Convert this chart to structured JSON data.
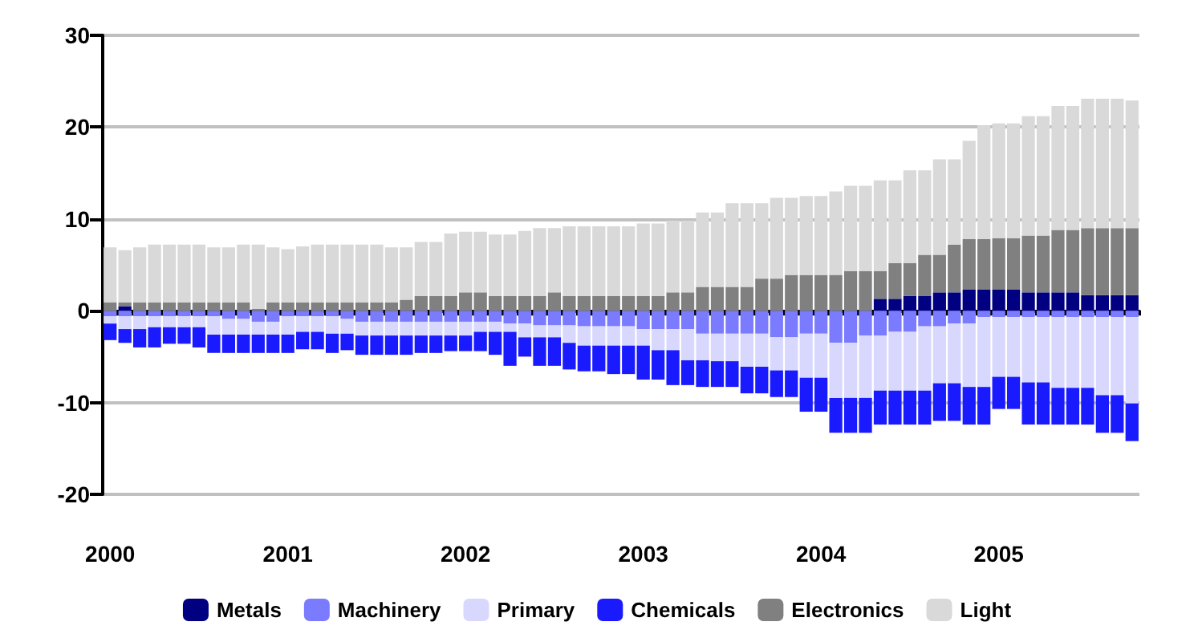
{
  "chart_data": {
    "type": "bar",
    "stacked": true,
    "legend": "bottom",
    "grid": "y",
    "ylim": [
      -20,
      30
    ],
    "yticks": [
      -20,
      -10,
      0,
      10,
      20,
      30
    ],
    "categories": [
      "2000",
      null,
      null,
      null,
      null,
      null,
      null,
      null,
      null,
      null,
      null,
      null,
      "2001",
      null,
      null,
      null,
      null,
      null,
      null,
      null,
      null,
      null,
      null,
      null,
      "2002",
      null,
      null,
      null,
      null,
      null,
      null,
      null,
      null,
      null,
      null,
      null,
      "2003",
      null,
      null,
      null,
      null,
      null,
      null,
      null,
      null,
      null,
      null,
      null,
      "2004",
      null,
      null,
      null,
      null,
      null,
      null,
      null,
      null,
      null,
      null,
      null,
      "2005",
      null,
      null,
      null,
      null,
      null,
      null,
      null,
      null,
      null
    ],
    "series": [
      {
        "name": "Metals",
        "color": "#000080",
        "values": [
          0,
          0.5,
          0,
          0,
          0,
          0,
          0,
          0,
          0,
          0,
          0,
          0,
          0,
          0,
          0,
          0,
          0,
          0,
          0,
          0,
          0,
          0,
          0,
          0,
          0,
          0,
          0,
          0,
          0,
          0,
          0,
          0,
          0,
          0,
          0,
          0,
          0,
          0,
          0,
          0,
          0,
          0,
          0,
          0,
          0,
          0,
          0,
          0,
          0,
          0,
          0,
          0,
          1.3,
          1.3,
          1.6,
          1.6,
          2.0,
          2.0,
          2.3,
          2.3,
          2.3,
          2.3,
          2.0,
          2.0,
          2.0,
          2.0,
          1.7,
          1.7,
          1.7,
          1.7
        ]
      },
      {
        "name": "Machinery",
        "color": "#7b7bff",
        "values": [
          -0.6,
          -0.6,
          -0.6,
          -0.6,
          -0.6,
          -0.6,
          -0.6,
          -0.6,
          -0.9,
          -0.9,
          -1.2,
          -1.2,
          -0.6,
          -0.6,
          -0.6,
          -0.6,
          -0.9,
          -1.2,
          -1.2,
          -1.2,
          -1.2,
          -1.2,
          -1.2,
          -1.2,
          -1.2,
          -1.2,
          -1.2,
          -1.4,
          -1.4,
          -1.6,
          -1.6,
          -1.6,
          -1.7,
          -1.7,
          -1.7,
          -1.7,
          -2.0,
          -2.0,
          -2.0,
          -2.0,
          -2.5,
          -2.5,
          -2.5,
          -2.5,
          -2.5,
          -2.9,
          -2.9,
          -2.5,
          -2.5,
          -3.5,
          -3.5,
          -2.7,
          -2.7,
          -2.3,
          -2.3,
          -1.7,
          -1.7,
          -1.4,
          -1.4,
          -0.7,
          -0.7,
          -0.7,
          -0.7,
          -0.7,
          -0.7,
          -0.7,
          -0.7,
          -0.7,
          -0.7,
          -0.7
        ]
      },
      {
        "name": "Primary",
        "color": "#d8d8ff",
        "values": [
          -0.8,
          -1.4,
          -1.4,
          -1.2,
          -1.2,
          -1.2,
          -1.2,
          -2.0,
          -1.7,
          -1.7,
          -1.4,
          -1.4,
          -2.0,
          -1.7,
          -1.7,
          -1.9,
          -1.6,
          -1.5,
          -1.5,
          -1.5,
          -1.5,
          -1.5,
          -1.5,
          -1.5,
          -1.5,
          -1.1,
          -1.1,
          -0.9,
          -1.5,
          -1.3,
          -1.3,
          -1.9,
          -2.1,
          -2.1,
          -2.1,
          -2.1,
          -1.8,
          -2.3,
          -2.3,
          -3.4,
          -2.9,
          -3.0,
          -3.0,
          -3.6,
          -3.6,
          -3.6,
          -3.6,
          -4.8,
          -4.8,
          -6.0,
          -6.0,
          -6.8,
          -6.0,
          -6.4,
          -6.4,
          -7.0,
          -6.2,
          -6.5,
          -6.9,
          -7.6,
          -6.5,
          -6.5,
          -7.1,
          -7.1,
          -7.7,
          -7.7,
          -7.7,
          -8.5,
          -8.5,
          -9.4
        ]
      },
      {
        "name": "Chemicals",
        "color": "#1a1aff",
        "values": [
          -1.8,
          -1.5,
          -2.0,
          -2.2,
          -1.8,
          -1.8,
          -2.2,
          -2.0,
          -2.0,
          -2.0,
          -2.0,
          -2.0,
          -2.0,
          -1.9,
          -1.9,
          -2.1,
          -1.8,
          -2.1,
          -2.1,
          -2.1,
          -2.1,
          -1.9,
          -1.9,
          -1.7,
          -1.7,
          -2.1,
          -2.5,
          -3.7,
          -2.1,
          -3.1,
          -3.1,
          -2.9,
          -2.8,
          -2.8,
          -3.1,
          -3.1,
          -3.7,
          -3.2,
          -3.8,
          -2.7,
          -2.9,
          -2.8,
          -2.8,
          -2.9,
          -2.9,
          -2.9,
          -2.9,
          -3.7,
          -3.7,
          -3.8,
          -3.8,
          -3.8,
          -3.7,
          -3.7,
          -3.7,
          -3.7,
          -4.1,
          -4.1,
          -4.1,
          -4.1,
          -3.5,
          -3.5,
          -4.6,
          -4.6,
          -4.0,
          -4.0,
          -4.0,
          -4.1,
          -4.1,
          -4.1
        ]
      },
      {
        "name": "Electronics",
        "color": "#808080",
        "values": [
          0.9,
          0.4,
          0.9,
          0.9,
          0.9,
          0.9,
          0.9,
          0.9,
          0.9,
          0.9,
          0.2,
          0.9,
          0.9,
          0.9,
          0.9,
          0.9,
          0.9,
          0.9,
          0.9,
          0.9,
          1.2,
          1.6,
          1.6,
          1.6,
          2.0,
          2.0,
          1.6,
          1.6,
          1.6,
          1.6,
          2.0,
          1.6,
          1.6,
          1.6,
          1.6,
          1.6,
          1.6,
          1.6,
          2.0,
          2.0,
          2.6,
          2.6,
          2.6,
          2.6,
          3.5,
          3.5,
          3.9,
          3.9,
          3.9,
          3.9,
          4.3,
          4.3,
          3.0,
          3.9,
          3.6,
          4.5,
          4.1,
          5.2,
          5.5,
          5.5,
          5.6,
          5.6,
          6.2,
          6.2,
          6.8,
          6.8,
          7.3,
          7.3,
          7.3,
          7.3
        ]
      },
      {
        "name": "Light",
        "color": "#d9d9d9",
        "values": [
          6.0,
          5.7,
          6.0,
          6.3,
          6.3,
          6.3,
          6.3,
          6.0,
          6.0,
          6.3,
          7.0,
          6.0,
          5.8,
          6.1,
          6.3,
          6.3,
          6.3,
          6.3,
          6.3,
          6.0,
          5.7,
          5.9,
          5.9,
          6.8,
          6.6,
          6.6,
          6.7,
          6.7,
          7.1,
          7.4,
          7.0,
          7.6,
          7.6,
          7.6,
          7.6,
          7.6,
          7.9,
          7.9,
          7.8,
          7.8,
          8.1,
          8.1,
          9.1,
          9.1,
          8.2,
          8.8,
          8.4,
          8.6,
          8.6,
          9.1,
          9.3,
          9.3,
          9.9,
          9.0,
          10.1,
          9.2,
          10.4,
          9.3,
          10.7,
          12.4,
          12.5,
          12.5,
          13.0,
          13.0,
          13.5,
          13.5,
          14.1,
          14.1,
          14.1,
          13.9
        ]
      }
    ]
  }
}
